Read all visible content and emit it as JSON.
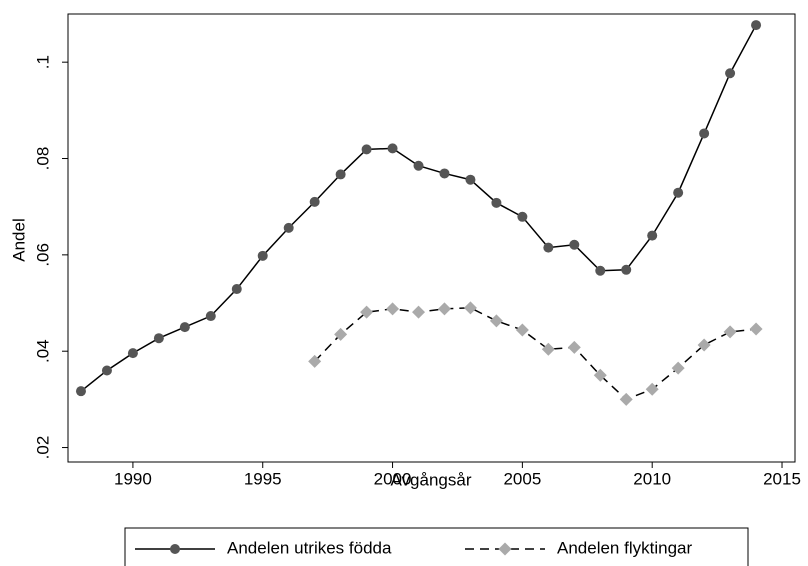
{
  "chart_data": {
    "type": "line",
    "x_label": "Avgångsår",
    "y_label": "Andel",
    "x": [
      1988,
      1989,
      1990,
      1991,
      1992,
      1993,
      1994,
      1995,
      1996,
      1997,
      1998,
      1999,
      2000,
      2001,
      2002,
      2003,
      2004,
      2005,
      2006,
      2007,
      2008,
      2009,
      2010,
      2011,
      2012,
      2013,
      2014
    ],
    "series": [
      {
        "name": "Andelen utrikes födda",
        "color": "#555555",
        "line_color": "#000000",
        "line_style": "solid",
        "marker": "circle",
        "values": [
          0.0317,
          0.036,
          0.0396,
          0.0427,
          0.045,
          0.0473,
          0.0529,
          0.0598,
          0.0656,
          0.071,
          0.0767,
          0.0819,
          0.0821,
          0.0785,
          0.0769,
          0.0756,
          0.0708,
          0.0679,
          0.0615,
          0.0621,
          0.0567,
          0.0569,
          0.064,
          0.0729,
          0.0852,
          0.0977,
          0.1077
        ]
      },
      {
        "name": "Andelen flyktingar",
        "color": "#aaaaaa",
        "line_color": "#000000",
        "line_style": "dashed",
        "marker": "diamond",
        "values": [
          null,
          null,
          null,
          null,
          null,
          null,
          null,
          null,
          null,
          0.0379,
          0.0435,
          0.0481,
          0.0488,
          0.0481,
          0.0488,
          0.049,
          0.0463,
          0.0444,
          0.0404,
          0.0408,
          0.035,
          0.03,
          0.0321,
          0.0365,
          0.0413,
          0.044,
          0.0446
        ]
      }
    ],
    "xlim": [
      1987.5,
      2015.5
    ],
    "xticks": [
      1990,
      1995,
      2000,
      2005,
      2010,
      2015
    ],
    "ylim": [
      0.017,
      0.11
    ],
    "yticks": [
      {
        "value": 0.02,
        "label": ".02"
      },
      {
        "value": 0.04,
        "label": ".04"
      },
      {
        "value": 0.06,
        "label": ".06"
      },
      {
        "value": 0.08,
        "label": ".08"
      },
      {
        "value": 0.1,
        "label": ".1"
      }
    ],
    "grid": false,
    "legend": "bottom"
  }
}
